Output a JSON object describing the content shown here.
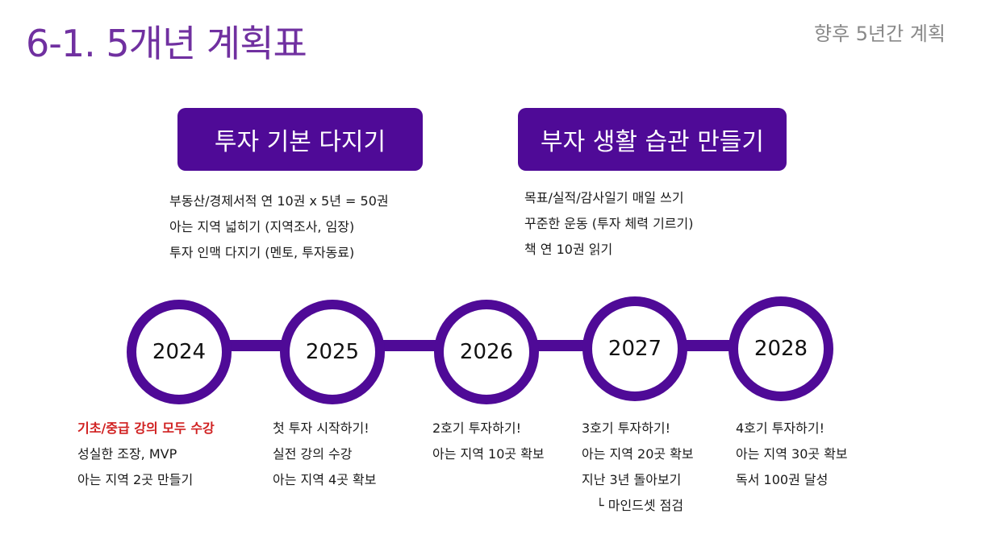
{
  "header": {
    "title": "6-1. 5개년 계획표",
    "subtitle": "향후 5년간 계획"
  },
  "themes": [
    {
      "label": "투자 기본 다지기",
      "items": [
        "부동산/경제서적 연 10권 x 5년 = 50권",
        "아는 지역 넓히기 (지역조사, 임장)",
        "투자 인맥 다지기 (멘토, 투자동료)"
      ]
    },
    {
      "label": "부자 생활 습관 만들기",
      "items": [
        "목표/실적/감사일기 매일 쓰기",
        "꾸준한 운동 (투자 체력 기르기)",
        "책 연 10권 읽기"
      ]
    }
  ],
  "timeline": [
    {
      "year": "2024",
      "items": [
        "기초/중급 강의 모두 수강",
        "성실한 조장, MVP",
        "아는 지역 2곳 만들기"
      ]
    },
    {
      "year": "2025",
      "items": [
        "첫 투자 시작하기!",
        "실전 강의 수강",
        "아는 지역 4곳 확보"
      ]
    },
    {
      "year": "2026",
      "items": [
        "2호기 투자하기!",
        "아는 지역 10곳 확보"
      ]
    },
    {
      "year": "2027",
      "items": [
        "3호기 투자하기!",
        "아는 지역 20곳 확보",
        "지난 3년 돌아보기",
        "└ 마인드셋 점검"
      ]
    },
    {
      "year": "2028",
      "items": [
        "4호기 투자하기!",
        "아는 지역 30곳 확보",
        "독서 100권 달성"
      ]
    }
  ],
  "colors": {
    "accent": "#4F0A97",
    "title": "#7030A0",
    "highlight": "#d02020"
  }
}
